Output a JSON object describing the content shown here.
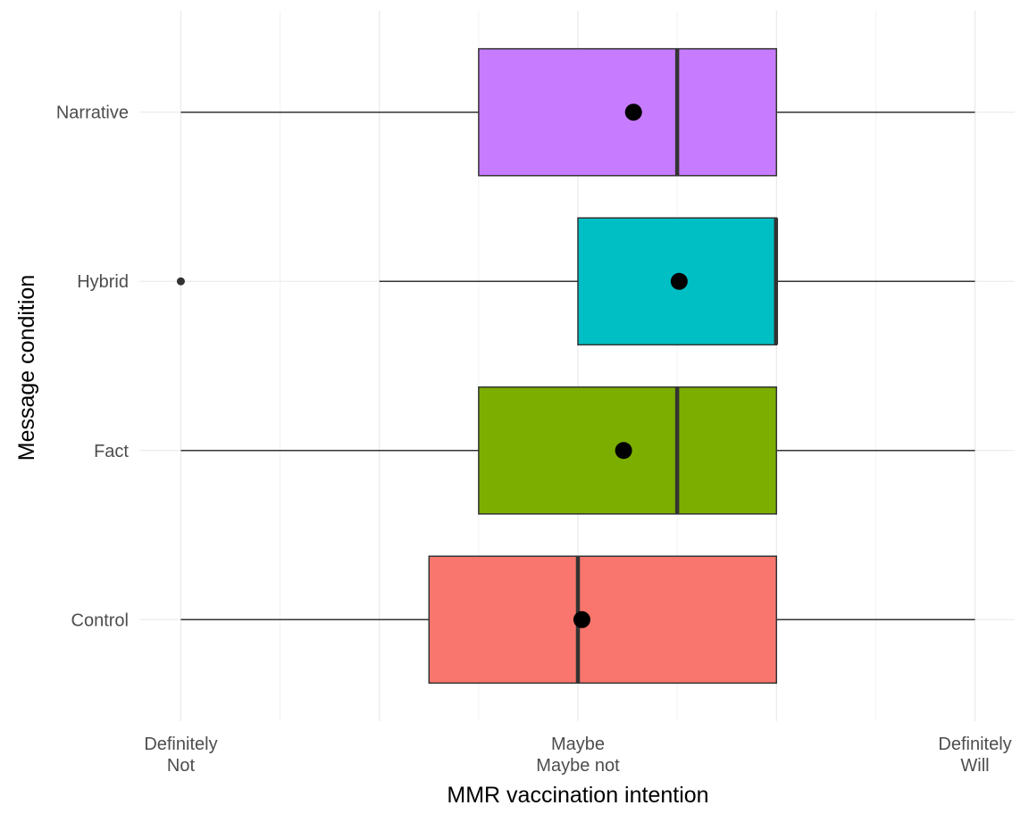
{
  "chart_data": {
    "type": "boxplot",
    "orientation": "horizontal",
    "xlabel": "MMR vaccination intention",
    "ylabel": "Message condition",
    "xlim": [
      0.8,
      5.2
    ],
    "x_ticks": [
      {
        "value": 1,
        "lines": [
          "Definitely",
          "Not"
        ]
      },
      {
        "value": 3,
        "lines": [
          "Maybe",
          "Maybe not"
        ]
      },
      {
        "value": 5,
        "lines": [
          "Definitely",
          "Will"
        ]
      }
    ],
    "grid": true,
    "legend": "none",
    "categories": [
      "Control",
      "Fact",
      "Hybrid",
      "Narrative"
    ],
    "series": [
      {
        "category": "Control",
        "color": "#F8766D",
        "whisker_low": 1,
        "q1": 2.25,
        "median": 3,
        "q3": 4,
        "whisker_high": 5,
        "mean": 3.02,
        "outliers": []
      },
      {
        "category": "Fact",
        "color": "#7CAE00",
        "whisker_low": 1,
        "q1": 2.5,
        "median": 3.5,
        "q3": 4,
        "whisker_high": 5,
        "mean": 3.23,
        "outliers": []
      },
      {
        "category": "Hybrid",
        "color": "#00BFC4",
        "whisker_low": 2,
        "q1": 3,
        "median": 4,
        "q3": 4,
        "whisker_high": 5,
        "mean": 3.51,
        "outliers": [
          1
        ]
      },
      {
        "category": "Narrative",
        "color": "#C77CFF",
        "whisker_low": 1,
        "q1": 2.5,
        "median": 3.5,
        "q3": 4,
        "whisker_high": 5,
        "mean": 3.28,
        "outliers": []
      }
    ]
  }
}
